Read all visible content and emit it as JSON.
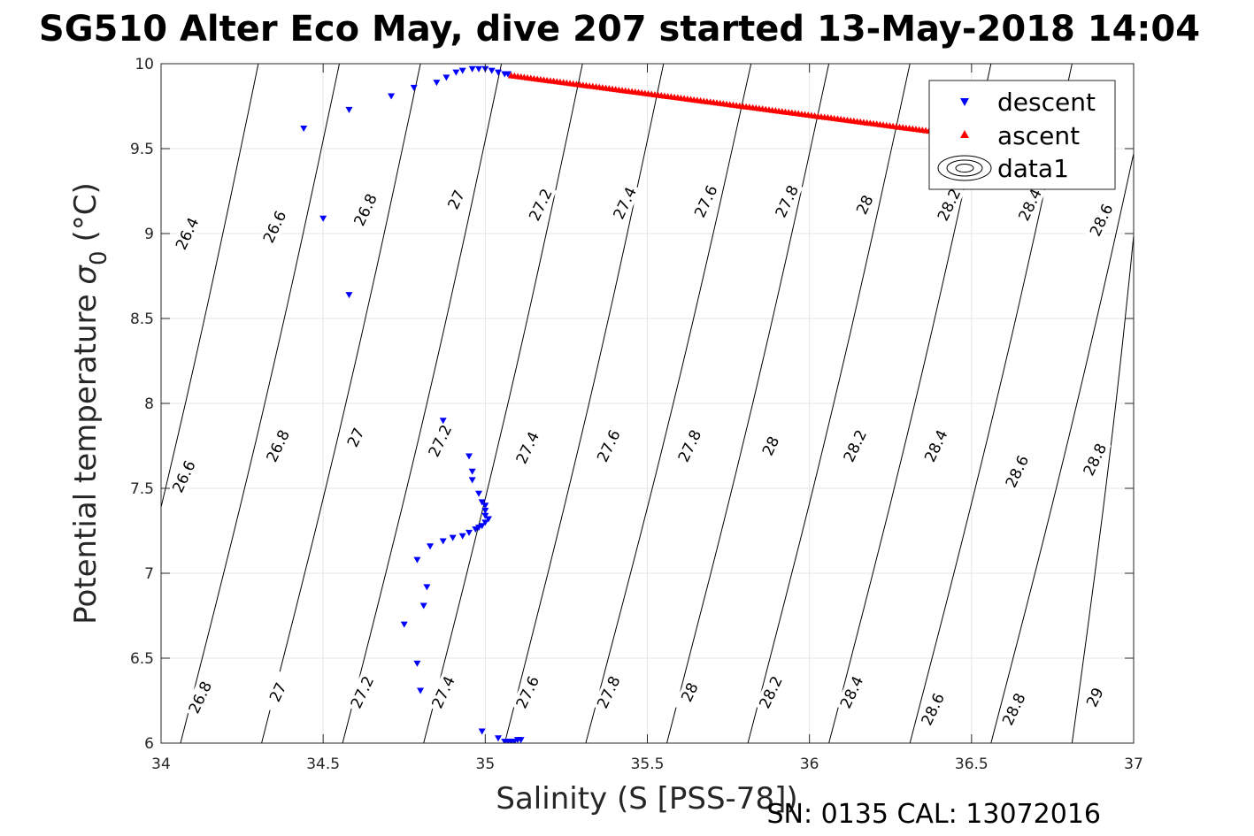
{
  "chart_data": {
    "type": "scatter",
    "title": "SG510 Alter Eco May, dive 207 started 13-May-2018 14:04",
    "xlabel": "Salinity (S [PSS-78])",
    "ylabel": "Potential temperature",
    "ylabel_symbol": "σ",
    "ylabel_subscript": "0",
    "ylabel_unit": "(°C)",
    "footer": "SN: 0135  CAL: 13072016",
    "xlim": [
      34,
      37
    ],
    "ylim": [
      6,
      10
    ],
    "xticks": [
      "34",
      "34.5",
      "35",
      "35.5",
      "36",
      "36.5",
      "37"
    ],
    "yticks": [
      "6",
      "6.5",
      "7",
      "7.5",
      "8",
      "8.5",
      "9",
      "9.5",
      "10"
    ],
    "xtick_values": [
      34,
      34.5,
      35,
      35.5,
      36,
      36.5,
      37
    ],
    "ytick_values": [
      6,
      6.5,
      7,
      7.5,
      8,
      8.5,
      9,
      9.5,
      10
    ],
    "grid": true,
    "legend_position": "top-right",
    "legend": [
      "descent",
      "ascent",
      "data1"
    ],
    "series": [
      {
        "name": "descent",
        "color": "#0000ff",
        "marker": "triangle-down",
        "points": [
          [
            34.91,
            9.95
          ],
          [
            34.93,
            9.96
          ],
          [
            34.96,
            9.97
          ],
          [
            34.98,
            9.97
          ],
          [
            35.0,
            9.97
          ],
          [
            35.02,
            9.96
          ],
          [
            35.04,
            9.95
          ],
          [
            35.06,
            9.94
          ],
          [
            35.07,
            9.94
          ],
          [
            34.88,
            9.92
          ],
          [
            34.85,
            9.89
          ],
          [
            34.78,
            9.86
          ],
          [
            34.71,
            9.81
          ],
          [
            34.58,
            9.73
          ],
          [
            34.44,
            9.62
          ],
          [
            34.5,
            9.09
          ],
          [
            34.58,
            8.64
          ],
          [
            34.87,
            7.9
          ],
          [
            34.95,
            7.69
          ],
          [
            34.96,
            7.6
          ],
          [
            34.96,
            7.55
          ],
          [
            34.98,
            7.47
          ],
          [
            34.99,
            7.42
          ],
          [
            35.0,
            7.4
          ],
          [
            35.0,
            7.37
          ],
          [
            35.0,
            7.34
          ],
          [
            35.01,
            7.32
          ],
          [
            35.0,
            7.3
          ],
          [
            34.99,
            7.28
          ],
          [
            34.98,
            7.27
          ],
          [
            34.97,
            7.26
          ],
          [
            34.95,
            7.24
          ],
          [
            34.93,
            7.22
          ],
          [
            34.9,
            7.21
          ],
          [
            34.87,
            7.19
          ],
          [
            34.83,
            7.16
          ],
          [
            34.79,
            7.08
          ],
          [
            34.82,
            6.92
          ],
          [
            34.81,
            6.81
          ],
          [
            34.75,
            6.7
          ],
          [
            34.79,
            6.47
          ],
          [
            34.8,
            6.31
          ],
          [
            34.99,
            6.07
          ],
          [
            35.04,
            6.03
          ],
          [
            35.06,
            6.01
          ],
          [
            35.07,
            6.01
          ],
          [
            35.08,
            6.01
          ],
          [
            35.09,
            6.01
          ],
          [
            35.1,
            6.02
          ],
          [
            35.11,
            6.02
          ]
        ]
      },
      {
        "name": "ascent",
        "color": "#ff0000",
        "marker": "triangle-up",
        "x_start": 35.08,
        "x_end": 36.58,
        "y_start": 9.93,
        "y_end": 9.55,
        "count": 150
      }
    ],
    "contours": {
      "name": "data1",
      "color": "#000000",
      "levels": [
        26.4,
        26.6,
        26.8,
        27,
        27.2,
        27.4,
        27.6,
        27.8,
        28,
        28.2,
        28.4,
        28.6,
        28.8,
        29
      ],
      "x_at_t10": {
        "26.4": 34.0,
        "26.6": 34.3,
        "26.8": 34.55,
        "27": 34.8,
        "27.2": 35.05,
        "27.4": 35.3,
        "27.6": 35.55,
        "27.8": 35.82,
        "28": 36.06,
        "28.2": 36.31,
        "28.4": 36.56,
        "28.6": 36.81,
        "28.8": 37.06
      },
      "x_at_t6": {
        "26.6": 33.82,
        "26.8": 34.06,
        "27": 34.31,
        "27.2": 34.56,
        "27.4": 34.81,
        "27.6": 35.06,
        "27.8": 35.31,
        "28": 35.56,
        "28.2": 35.81,
        "28.4": 36.06,
        "28.6": 36.31,
        "28.8": 36.56,
        "29": 36.81
      },
      "labels": [
        {
          "text": "26.4",
          "x": 34.08,
          "y": 9.0
        },
        {
          "text": "26.6",
          "x": 34.35,
          "y": 9.04
        },
        {
          "text": "26.8",
          "x": 34.63,
          "y": 9.14
        },
        {
          "text": "27",
          "x": 34.91,
          "y": 9.2
        },
        {
          "text": "27.2",
          "x": 35.17,
          "y": 9.17
        },
        {
          "text": "27.4",
          "x": 35.43,
          "y": 9.18
        },
        {
          "text": "27.6",
          "x": 35.68,
          "y": 9.19
        },
        {
          "text": "27.8",
          "x": 35.93,
          "y": 9.19
        },
        {
          "text": "28",
          "x": 36.17,
          "y": 9.17
        },
        {
          "text": "28.2",
          "x": 36.43,
          "y": 9.17
        },
        {
          "text": "28.4",
          "x": 36.68,
          "y": 9.17
        },
        {
          "text": "28.6",
          "x": 36.9,
          "y": 9.08
        },
        {
          "text": "26.6",
          "x": 34.07,
          "y": 7.57
        },
        {
          "text": "26.8",
          "x": 34.36,
          "y": 7.75
        },
        {
          "text": "27",
          "x": 34.6,
          "y": 7.8
        },
        {
          "text": "27.2",
          "x": 34.86,
          "y": 7.78
        },
        {
          "text": "27.4",
          "x": 35.13,
          "y": 7.74
        },
        {
          "text": "27.6",
          "x": 35.38,
          "y": 7.75
        },
        {
          "text": "27.8",
          "x": 35.63,
          "y": 7.75
        },
        {
          "text": "28",
          "x": 35.88,
          "y": 7.75
        },
        {
          "text": "28.2",
          "x": 36.14,
          "y": 7.75
        },
        {
          "text": "28.4",
          "x": 36.39,
          "y": 7.75
        },
        {
          "text": "28.6",
          "x": 36.64,
          "y": 7.6
        },
        {
          "text": "28.8",
          "x": 36.88,
          "y": 7.67
        },
        {
          "text": "26.8",
          "x": 34.12,
          "y": 6.27
        },
        {
          "text": "27",
          "x": 34.36,
          "y": 6.3
        },
        {
          "text": "27.2",
          "x": 34.62,
          "y": 6.3
        },
        {
          "text": "27.4",
          "x": 34.87,
          "y": 6.3
        },
        {
          "text": "27.6",
          "x": 35.13,
          "y": 6.3
        },
        {
          "text": "27.8",
          "x": 35.38,
          "y": 6.3
        },
        {
          "text": "28",
          "x": 35.63,
          "y": 6.3
        },
        {
          "text": "28.2",
          "x": 35.88,
          "y": 6.3
        },
        {
          "text": "28.4",
          "x": 36.13,
          "y": 6.3
        },
        {
          "text": "28.6",
          "x": 36.38,
          "y": 6.2
        },
        {
          "text": "28.8",
          "x": 36.63,
          "y": 6.2
        },
        {
          "text": "29",
          "x": 36.88,
          "y": 6.27
        }
      ]
    }
  }
}
